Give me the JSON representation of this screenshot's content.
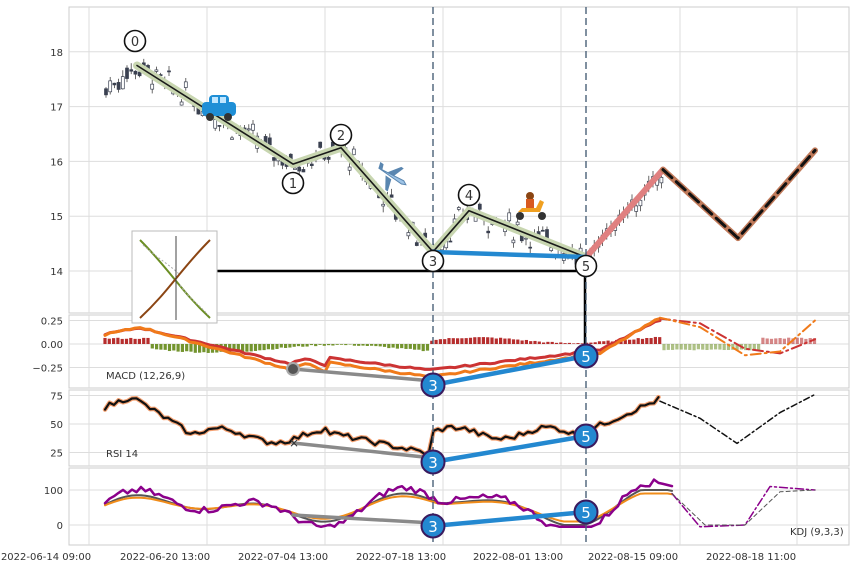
{
  "chart_data": {
    "type": "candlestick",
    "panels": [
      {
        "id": "price",
        "yticks": [
          14,
          15,
          16,
          17,
          18
        ],
        "ylim": [
          13.25,
          18.85
        ],
        "candles_x_end": "2022-08-12",
        "wave_points": [
          {
            "label": "0",
            "date": "2022-06-19",
            "value": 17.75
          },
          {
            "label": "1",
            "date": "2022-06-29",
            "value": 15.95
          },
          {
            "label": "2",
            "date": "2022-07-05",
            "value": 16.25
          },
          {
            "label": "3",
            "date": "2022-07-19",
            "value": 14.35
          },
          {
            "label": "4",
            "date": "2022-07-23",
            "value": 15.1
          },
          {
            "label": "5",
            "date": "2022-08-11",
            "value": 14.25
          }
        ],
        "projection": [
          {
            "date": "2022-08-11",
            "value": 14.25
          },
          {
            "date": "2022-08-16",
            "value": 15.85
          },
          {
            "date": "2022-08-19",
            "value": 14.6
          },
          {
            "date": "2022-08-23",
            "value": 16.2
          }
        ],
        "horizontal_level": 14.0,
        "icons": [
          "car-icon",
          "airplane-icon",
          "scooter-icon"
        ]
      },
      {
        "id": "macd",
        "label": "MACD (12,26,9)",
        "yticks": [
          "0.25",
          "0.00",
          "−0.25"
        ],
        "ylim": [
          -0.42,
          0.32
        ]
      },
      {
        "id": "rsi",
        "label": "RSI 14",
        "yticks": [
          "25",
          "50",
          "75"
        ],
        "ylim": [
          12,
          80
        ]
      },
      {
        "id": "kdj",
        "label": "KDJ (9,3,3)",
        "yticks": [
          "0",
          "100"
        ],
        "ylim": [
          -40,
          160
        ]
      }
    ],
    "xticks": [
      "2022-06-14 09:00",
      "2022-06-20 13:00",
      "2022-07-04 13:00",
      "2022-07-18 13:00",
      "2022-08-01 13:00",
      "2022-08-15 09:00",
      "2022-08-18 11:00"
    ],
    "divergence_markers": [
      {
        "label": "3",
        "panel": "macd"
      },
      {
        "label": "5",
        "panel": "macd"
      },
      {
        "label": "3",
        "panel": "rsi"
      },
      {
        "label": "5",
        "panel": "rsi"
      },
      {
        "label": "3",
        "panel": "kdj"
      },
      {
        "label": "5",
        "panel": "kdj"
      }
    ],
    "colors": {
      "wave_line": "#1a1a1a",
      "wave_glow": "#c8d6b0",
      "divergence": "#2388d0",
      "projection_up": "#e08080",
      "projection_down": "#c07a5a",
      "macd_dif": "#f07a1a",
      "macd_dea": "#cc3333",
      "hist_pos": "#b22222",
      "hist_neg": "#6b8e23",
      "rsi": "#111111",
      "kdj_k": "#555555",
      "kdj_d": "#f08c1a",
      "kdj_j": "#8b008b"
    }
  }
}
